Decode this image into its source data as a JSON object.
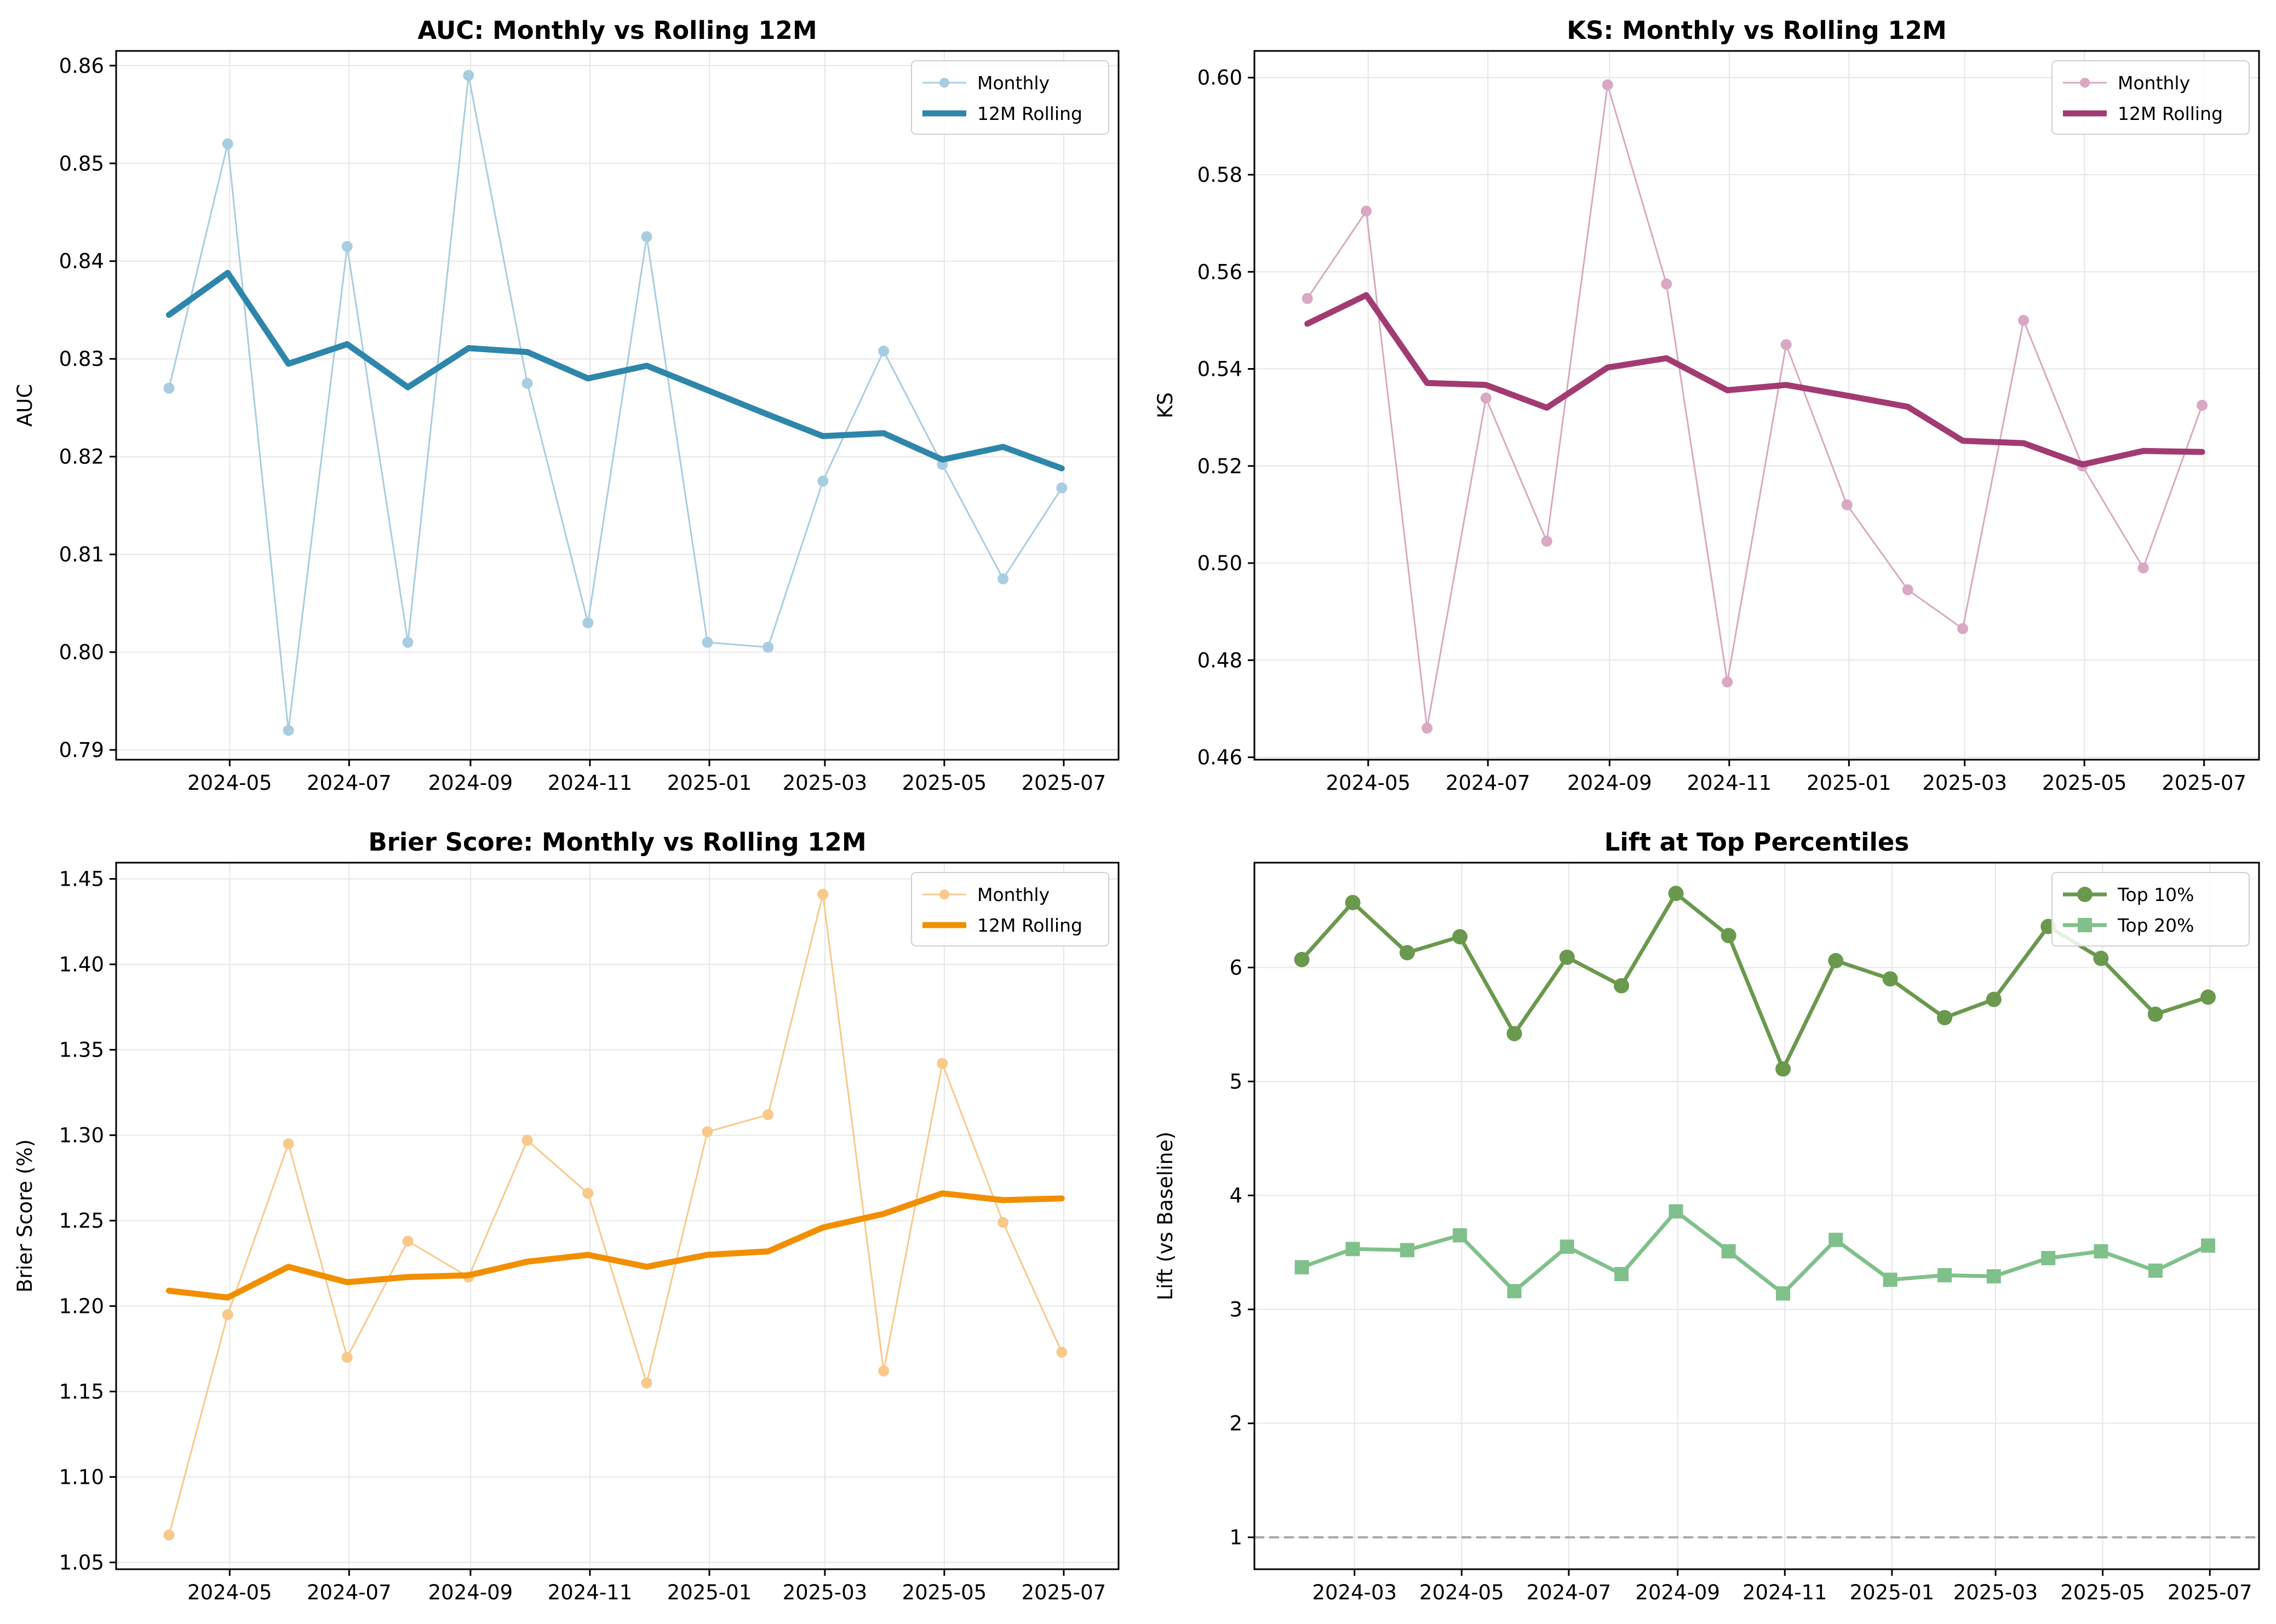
{
  "chart_data": [
    {
      "type": "line",
      "title": "AUC: Monthly vs Rolling 12M",
      "xlabel": "",
      "ylabel": "AUC",
      "xlim": [
        "2024-03-04",
        "2025-07-29"
      ],
      "ylim": [
        0.789,
        0.8615
      ],
      "x_ticks": [
        "2024-05",
        "2024-07",
        "2024-09",
        "2024-11",
        "2025-01",
        "2025-03",
        "2025-05",
        "2025-07"
      ],
      "y_ticks": [
        "0.79",
        "0.80",
        "0.81",
        "0.82",
        "0.83",
        "0.84",
        "0.85",
        "0.86"
      ],
      "y_tick_values": [
        0.79,
        0.8,
        0.81,
        0.82,
        0.83,
        0.84,
        0.85,
        0.86
      ],
      "grid": true,
      "legend": "top-right",
      "x": [
        "2024-03-31",
        "2024-04-30",
        "2024-05-31",
        "2024-06-30",
        "2024-07-31",
        "2024-08-31",
        "2024-09-30",
        "2024-10-31",
        "2024-11-30",
        "2024-12-31",
        "2025-01-31",
        "2025-02-28",
        "2025-03-31",
        "2025-04-30",
        "2025-05-31",
        "2025-06-30"
      ],
      "series": [
        {
          "name": "Monthly",
          "style": "thin-marker",
          "color": "#A9CDE0",
          "values": [
            0.827,
            0.852,
            0.792,
            0.8415,
            0.801,
            0.859,
            0.8275,
            0.803,
            0.8425,
            0.801,
            0.8005,
            0.8175,
            0.8308,
            0.8192,
            0.8075,
            0.8168
          ]
        },
        {
          "name": "12M Rolling",
          "style": "thick",
          "color": "#2E86AB",
          "values": [
            0.8345,
            0.8388,
            0.8295,
            0.8315,
            0.8271,
            0.8311,
            0.8307,
            0.828,
            0.8293,
            0.8268,
            0.8243,
            0.8221,
            0.8224,
            0.8197,
            0.821,
            0.8188
          ]
        }
      ]
    },
    {
      "type": "line",
      "title": "KS: Monthly vs Rolling 12M",
      "xlabel": "",
      "ylabel": "KS",
      "xlim": [
        "2024-03-04",
        "2025-07-29"
      ],
      "ylim": [
        0.4595,
        0.6055
      ],
      "x_ticks": [
        "2024-05",
        "2024-07",
        "2024-09",
        "2024-11",
        "2025-01",
        "2025-03",
        "2025-05",
        "2025-07"
      ],
      "y_ticks": [
        "0.46",
        "0.48",
        "0.50",
        "0.52",
        "0.54",
        "0.56",
        "0.58",
        "0.60"
      ],
      "y_tick_values": [
        0.46,
        0.48,
        0.5,
        0.52,
        0.54,
        0.56,
        0.58,
        0.6
      ],
      "grid": true,
      "legend": "top-right",
      "x": [
        "2024-03-31",
        "2024-04-30",
        "2024-05-31",
        "2024-06-30",
        "2024-07-31",
        "2024-08-31",
        "2024-09-30",
        "2024-10-31",
        "2024-11-30",
        "2024-12-31",
        "2025-01-31",
        "2025-02-28",
        "2025-03-31",
        "2025-04-30",
        "2025-05-31",
        "2025-06-30"
      ],
      "series": [
        {
          "name": "Monthly",
          "style": "thin-marker",
          "color": "#D9A8C2",
          "values": [
            0.5545,
            0.5725,
            0.466,
            0.534,
            0.5045,
            0.5985,
            0.5575,
            0.4755,
            0.545,
            0.512,
            0.4945,
            0.4865,
            0.55,
            0.52,
            0.499,
            0.5325
          ]
        },
        {
          "name": "12M Rolling",
          "style": "thick",
          "color": "#A23B72",
          "values": [
            0.5493,
            0.5552,
            0.5371,
            0.5367,
            0.532,
            0.5403,
            0.5422,
            0.5356,
            0.5367,
            0.5345,
            0.5322,
            0.5252,
            0.5247,
            0.5203,
            0.5231,
            0.5229
          ]
        }
      ]
    },
    {
      "type": "line",
      "title": "Brier Score: Monthly vs Rolling 12M",
      "xlabel": "",
      "ylabel": "Brier Score (%)",
      "xlim": [
        "2024-03-04",
        "2025-07-29"
      ],
      "ylim": [
        1.046,
        1.4595
      ],
      "x_ticks": [
        "2024-05",
        "2024-07",
        "2024-09",
        "2024-11",
        "2025-01",
        "2025-03",
        "2025-05",
        "2025-07"
      ],
      "y_ticks": [
        "1.05",
        "1.10",
        "1.15",
        "1.20",
        "1.25",
        "1.30",
        "1.35",
        "1.40",
        "1.45"
      ],
      "y_tick_values": [
        1.05,
        1.1,
        1.15,
        1.2,
        1.25,
        1.3,
        1.35,
        1.4,
        1.45
      ],
      "grid": true,
      "legend": "top-right",
      "x": [
        "2024-03-31",
        "2024-04-30",
        "2024-05-31",
        "2024-06-30",
        "2024-07-31",
        "2024-08-31",
        "2024-09-30",
        "2024-10-31",
        "2024-11-30",
        "2024-12-31",
        "2025-01-31",
        "2025-02-28",
        "2025-03-31",
        "2025-04-30",
        "2025-05-31",
        "2025-06-30"
      ],
      "series": [
        {
          "name": "Monthly",
          "style": "thin-marker",
          "color": "#F8C98A",
          "values": [
            1.066,
            1.195,
            1.295,
            1.17,
            1.238,
            1.217,
            1.297,
            1.266,
            1.155,
            1.302,
            1.312,
            1.441,
            1.162,
            1.342,
            1.249,
            1.173
          ]
        },
        {
          "name": "12M Rolling",
          "style": "thick",
          "color": "#F18F01",
          "values": [
            1.209,
            1.205,
            1.223,
            1.214,
            1.217,
            1.218,
            1.226,
            1.23,
            1.223,
            1.23,
            1.232,
            1.246,
            1.254,
            1.266,
            1.262,
            1.263
          ]
        }
      ]
    },
    {
      "type": "line",
      "title": "Lift at Top Percentiles",
      "xlabel": "",
      "ylabel": "Lift (vs Baseline)",
      "xlim": [
        "2024-01-04",
        "2025-07-29"
      ],
      "ylim": [
        0.72,
        6.92
      ],
      "x_ticks": [
        "2024-03",
        "2024-05",
        "2024-07",
        "2024-09",
        "2024-11",
        "2025-01",
        "2025-03",
        "2025-05",
        "2025-07"
      ],
      "y_ticks": [
        "1",
        "2",
        "3",
        "4",
        "5",
        "6"
      ],
      "y_tick_values": [
        1,
        2,
        3,
        4,
        5,
        6
      ],
      "grid": true,
      "legend": "top-right",
      "baseline": 1,
      "x": [
        "2024-01-31",
        "2024-02-29",
        "2024-03-31",
        "2024-04-30",
        "2024-05-31",
        "2024-06-30",
        "2024-07-31",
        "2024-08-31",
        "2024-09-30",
        "2024-10-31",
        "2024-11-30",
        "2024-12-31",
        "2025-01-31",
        "2025-02-28",
        "2025-03-31",
        "2025-04-30",
        "2025-05-31",
        "2025-06-30"
      ],
      "series": [
        {
          "name": "Top 10%",
          "style": "circle",
          "color": "#6A994E",
          "values": [
            6.07,
            6.57,
            6.13,
            6.27,
            5.42,
            6.09,
            5.84,
            6.65,
            6.28,
            5.11,
            6.06,
            5.9,
            5.56,
            5.72,
            6.36,
            6.08,
            5.59,
            5.74
          ]
        },
        {
          "name": "Top 20%",
          "style": "square",
          "color": "#80C08A",
          "values": [
            3.37,
            3.53,
            3.52,
            3.65,
            3.16,
            3.55,
            3.31,
            3.86,
            3.51,
            3.14,
            3.61,
            3.26,
            3.3,
            3.29,
            3.45,
            3.51,
            3.34,
            3.56
          ]
        }
      ]
    }
  ]
}
